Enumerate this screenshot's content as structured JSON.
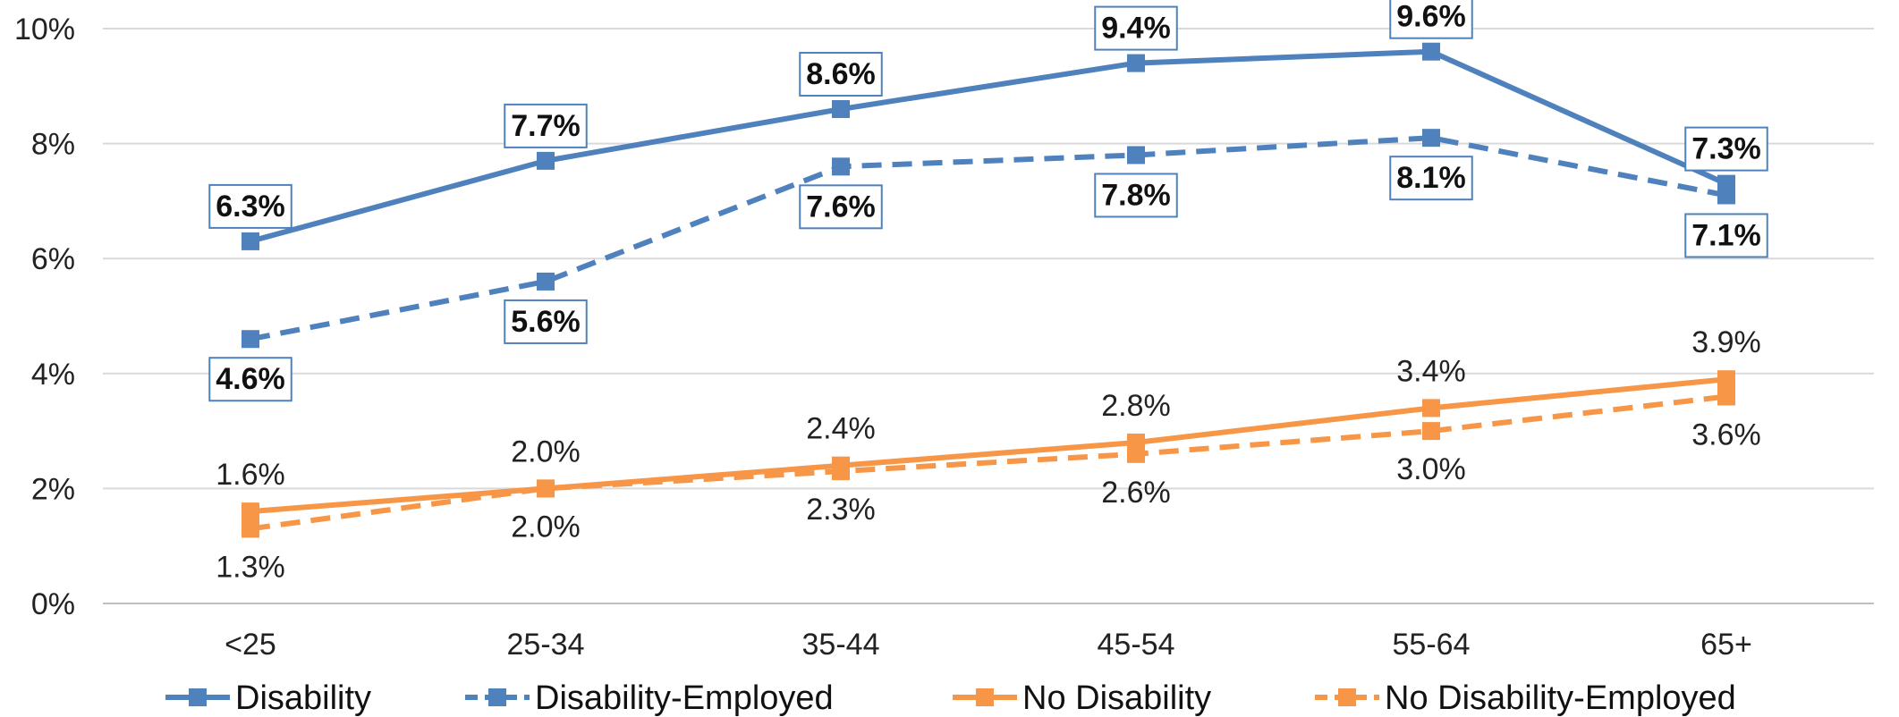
{
  "chart_data": {
    "type": "line",
    "categories": [
      "<25",
      "25-34",
      "35-44",
      "45-54",
      "55-64",
      "65+"
    ],
    "ylim": [
      0,
      10
    ],
    "y_ticks": [
      "0%",
      "2%",
      "4%",
      "6%",
      "8%",
      "10%"
    ],
    "grid": true,
    "legend_position": "bottom",
    "series": [
      {
        "name": "Disability",
        "values": [
          6.3,
          7.7,
          8.6,
          9.4,
          9.6,
          7.3
        ],
        "labels": [
          "6.3%",
          "7.7%",
          "8.6%",
          "9.4%",
          "9.6%",
          "7.3%"
        ],
        "color": "#4f81bd",
        "style": "solid",
        "label_position": "above",
        "label_boxed": true
      },
      {
        "name": "Disability-Employed",
        "values": [
          4.6,
          5.6,
          7.6,
          7.8,
          8.1,
          7.1
        ],
        "labels": [
          "4.6%",
          "5.6%",
          "7.6%",
          "7.8%",
          "8.1%",
          "7.1%"
        ],
        "color": "#4f81bd",
        "style": "dashed",
        "label_position": "below",
        "label_boxed": true
      },
      {
        "name": "No Disability",
        "values": [
          1.6,
          2.0,
          2.4,
          2.8,
          3.4,
          3.9
        ],
        "labels": [
          "1.6%",
          "2.0%",
          "2.4%",
          "2.8%",
          "3.4%",
          "3.9%"
        ],
        "color": "#f79646",
        "style": "solid",
        "label_position": "above",
        "label_boxed": false
      },
      {
        "name": "No Disability-Employed",
        "values": [
          1.3,
          2.0,
          2.3,
          2.6,
          3.0,
          3.6
        ],
        "labels": [
          "1.3%",
          "2.0%",
          "2.3%",
          "2.6%",
          "3.0%",
          "3.6%"
        ],
        "color": "#f79646",
        "style": "dashed",
        "label_position": "below",
        "label_boxed": false
      }
    ]
  }
}
